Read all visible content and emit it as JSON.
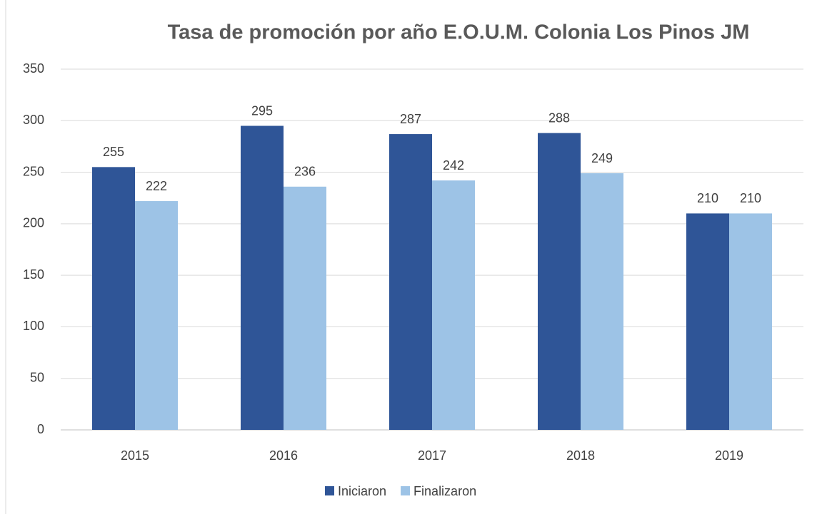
{
  "chart_data": {
    "type": "bar",
    "title": "Tasa de promoción por año E.O.U.M. Colonia Los Pinos JM",
    "categories": [
      "2015",
      "2016",
      "2017",
      "2018",
      "2019"
    ],
    "series": [
      {
        "name": "Iniciaron",
        "color": "#2f5597",
        "values": [
          255,
          295,
          287,
          288,
          210
        ]
      },
      {
        "name": "Finalizaron",
        "color": "#9dc3e6",
        "values": [
          222,
          236,
          242,
          249,
          210
        ]
      }
    ],
    "ylim": [
      0,
      350
    ],
    "yticks": [
      0,
      50,
      100,
      150,
      200,
      250,
      300,
      350
    ],
    "grid": true,
    "legend": "bottom"
  }
}
